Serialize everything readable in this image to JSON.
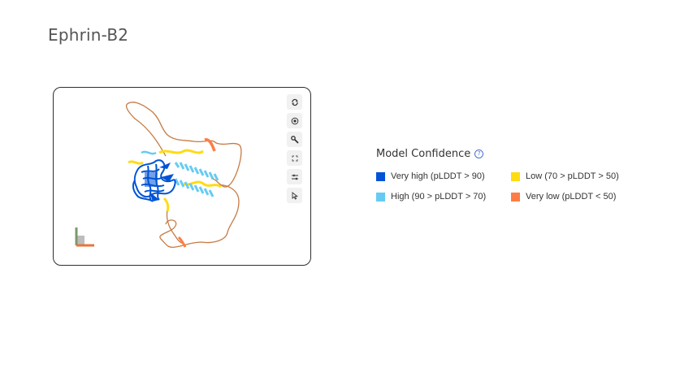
{
  "page": {
    "title": "Ephrin-B2"
  },
  "viewer": {
    "toolbar": [
      {
        "name": "reset-view-icon"
      },
      {
        "name": "focus-icon"
      },
      {
        "name": "wrench-icon"
      },
      {
        "name": "fullscreen-icon"
      },
      {
        "name": "settings-sliders-icon"
      },
      {
        "name": "cursor-select-icon"
      }
    ]
  },
  "legend": {
    "title": "Model Confidence",
    "help": "?",
    "items": [
      {
        "label": "Very high (pLDDT > 90)",
        "color": "#0053d6"
      },
      {
        "label": "Low (70 > pLDDT > 50)",
        "color": "#ffdb13"
      },
      {
        "label": "High (90 > pLDDT > 70)",
        "color": "#65cbf3"
      },
      {
        "label": "Very low (pLDDT < 50)",
        "color": "#ff7d45"
      }
    ]
  }
}
